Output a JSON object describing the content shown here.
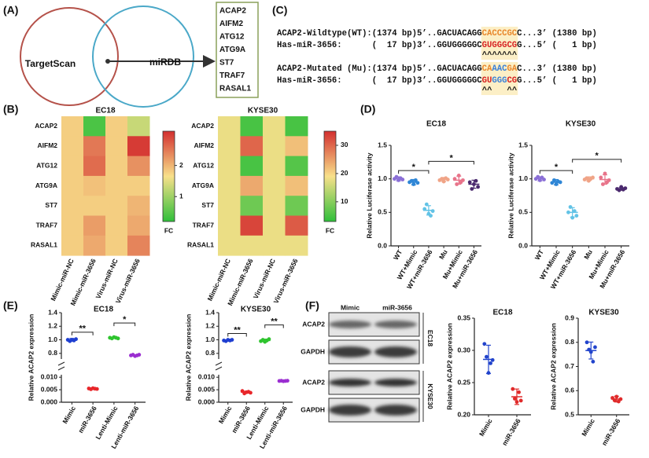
{
  "panels": [
    "(A)",
    "(C)",
    "(B)",
    "(D)",
    "(E)",
    "(F)"
  ],
  "venn": {
    "sets": [
      "TargetScan",
      "miRDB"
    ],
    "genes": [
      "ACAP2",
      "AIFM2",
      "ATG12",
      "ATG9A",
      "ST7",
      "TRAF7",
      "RASAL1"
    ]
  },
  "alignment": {
    "highlight": "#fcefc6",
    "blocks": [
      {
        "rows": [
          {
            "segments": [
              {
                "text": "ACAP2-Wildtype(WT):(1374 bp)5’..GACUACAGG",
                "color": "#111111"
              },
              {
                "text": "CACCCGC",
                "color": "#e8862a"
              },
              {
                "text": "C...3’ (1380 bp)",
                "color": "#111111"
              }
            ]
          },
          {
            "segments": [
              {
                "text": "Has-miR-3656:      (  17 bp)3’..GGUGGGGGC",
                "color": "#111111"
              },
              {
                "text": "GUGGGCG",
                "color": "#d62020"
              },
              {
                "text": "G...5’ (   1 bp)",
                "color": "#111111"
              }
            ]
          }
        ],
        "marks": "^^^^^^^"
      },
      {
        "rows": [
          {
            "segments": [
              {
                "text": "ACAP2-Mutated (Mu):(1374 bp)5’..GACUACAGG",
                "color": "#111111"
              },
              {
                "text": "CA",
                "color": "#e8862a"
              },
              {
                "text": "AAC",
                "color": "#3a7fd6"
              },
              {
                "text": "GA",
                "color": "#e8862a"
              },
              {
                "text": "C...3’ (1380 bp)",
                "color": "#111111"
              }
            ]
          },
          {
            "segments": [
              {
                "text": "Has-miR-3656:      (  17 bp)3’..GGUGGGGGC",
                "color": "#111111"
              },
              {
                "text": "GU",
                "color": "#d62020"
              },
              {
                "text": "GGG",
                "color": "#3a7fd6"
              },
              {
                "text": "CG",
                "color": "#d62020"
              },
              {
                "text": "G...5’ (   1 bp)",
                "color": "#111111"
              }
            ]
          }
        ],
        "marks": "^^   ^^"
      }
    ]
  },
  "blot": {
    "columns": [
      "Mimic",
      "miR-3656"
    ],
    "groups": [
      {
        "name": "EC18",
        "rows": [
          "ACAP2",
          "GAPDH"
        ]
      },
      {
        "name": "KYSE30",
        "rows": [
          "ACAP2",
          "GAPDH"
        ]
      }
    ]
  },
  "chart_data": [
    {
      "type": "heatmap",
      "title": "EC18",
      "rows": [
        "ACAP2",
        "AIFM2",
        "ATG12",
        "ATG9A",
        "ST7",
        "TRAF7",
        "RASAL1"
      ],
      "columns": [
        "Mimic-miR-NC",
        "Mimic-miR-3656",
        "Virus-miR-NC",
        "Virus-miR-3656"
      ],
      "values": [
        [
          1.8,
          0.4,
          1.8,
          1.3
        ],
        [
          1.8,
          2.5,
          1.8,
          3.0
        ],
        [
          1.8,
          2.6,
          1.8,
          2.3
        ],
        [
          1.8,
          1.9,
          1.8,
          1.8
        ],
        [
          1.8,
          1.8,
          1.8,
          2.0
        ],
        [
          1.8,
          2.2,
          1.8,
          2.1
        ],
        [
          1.8,
          2.1,
          1.8,
          2.4
        ]
      ],
      "zlim": [
        0.2,
        3.1
      ],
      "zticks": [
        1,
        2
      ],
      "colorbar_label": "FC",
      "colormap": [
        "#2fbf3a",
        "#f8e08a",
        "#d32f2f"
      ]
    },
    {
      "type": "heatmap",
      "title": "KYSE30",
      "rows": [
        "ACAP2",
        "AIFM2",
        "ATG12",
        "ATG9A",
        "ST7",
        "TRAF7",
        "RASAL1"
      ],
      "columns": [
        "Mimic-miR-NC",
        "Mimic-miR-3656",
        "Virus-miR-NC",
        "Virus-miR-3656"
      ],
      "values": [
        [
          18,
          5,
          18,
          5
        ],
        [
          18,
          30,
          18,
          22
        ],
        [
          18,
          5,
          18,
          6
        ],
        [
          18,
          24,
          18,
          22
        ],
        [
          18,
          8,
          18,
          8
        ],
        [
          18,
          33,
          18,
          31
        ],
        [
          18,
          18,
          18,
          18
        ]
      ],
      "zlim": [
        3,
        35
      ],
      "zticks": [
        10,
        20,
        30
      ],
      "colorbar_label": "FC",
      "colormap": [
        "#2fbf3a",
        "#f8e08a",
        "#d32f2f"
      ]
    },
    {
      "type": "dot",
      "title": "EC18",
      "y_label": "Relative Luciferase activity",
      "categories": [
        "WT",
        "WT+Mimic",
        "WT+miR-3656",
        "Mu",
        "Mu+Mimic",
        "Mu+miR-3656"
      ],
      "colors": [
        "#8a6fd6",
        "#2f86d6",
        "#62c3e6",
        "#f0a487",
        "#e8748a",
        "#4b2a6e"
      ],
      "values": [
        1.0,
        0.95,
        0.53,
        0.99,
        0.98,
        0.92
      ],
      "errors": [
        0.03,
        0.04,
        0.07,
        0.03,
        0.06,
        0.06
      ],
      "points": [
        [
          1.0,
          1.03,
          0.98,
          1.01,
          0.99
        ],
        [
          0.95,
          0.97,
          0.92,
          0.98,
          0.94
        ],
        [
          0.55,
          0.62,
          0.48,
          0.45,
          0.52
        ],
        [
          0.98,
          1.0,
          0.96,
          1.01,
          0.99
        ],
        [
          1.0,
          0.92,
          1.05,
          0.95,
          0.98
        ],
        [
          0.95,
          0.85,
          0.92,
          0.97,
          0.88
        ]
      ],
      "ylim": [
        0,
        1.5
      ],
      "yticks": [
        {
          "value": 0,
          "label": "0.0"
        },
        0.5,
        {
          "value": 1,
          "label": "1.0"
        },
        1.5
      ],
      "annotations": [
        {
          "text": "*",
          "between": [
            "WT",
            "WT+miR-3656"
          ]
        },
        {
          "text": "*",
          "between": [
            "WT+miR-3656",
            "Mu+miR-3656"
          ]
        }
      ]
    },
    {
      "type": "dot",
      "title": "KYSE30",
      "y_label": "Relative Luciferase activity",
      "categories": [
        "WT",
        "WT+Mimic",
        "WT+miR-3656",
        "Mu",
        "Mu+Mimic",
        "Mu+miR-3656"
      ],
      "colors": [
        "#8a6fd6",
        "#2f86d6",
        "#62c3e6",
        "#f0a487",
        "#e8748a",
        "#4b2a6e"
      ],
      "values": [
        1.0,
        0.95,
        0.5,
        1.0,
        0.99,
        0.85
      ],
      "errors": [
        0.03,
        0.04,
        0.07,
        0.03,
        0.07,
        0.02
      ],
      "points": [
        [
          1.0,
          1.03,
          0.98,
          1.02,
          0.99
        ],
        [
          0.94,
          0.98,
          0.92,
          0.96,
          0.95
        ],
        [
          0.5,
          0.58,
          0.42,
          0.52,
          0.45
        ],
        [
          0.99,
          1.01,
          0.97,
          1.0,
          1.02
        ],
        [
          1.02,
          0.92,
          1.08,
          0.95,
          0.98
        ],
        [
          0.85,
          0.83,
          0.88,
          0.84,
          0.86
        ]
      ],
      "ylim": [
        0,
        1.5
      ],
      "yticks": [
        {
          "value": 0,
          "label": "0.0"
        },
        0.5,
        {
          "value": 1,
          "label": "1.0"
        },
        1.5
      ],
      "annotations": [
        {
          "text": "*",
          "between": [
            "WT",
            "WT+miR-3656"
          ]
        },
        {
          "text": "*",
          "between": [
            "WT+miR-3656",
            "Mu+miR-3656"
          ]
        }
      ]
    },
    {
      "type": "dot",
      "title": "EC18",
      "y_label": "Relative ACAP2 expression",
      "categories": [
        "Mimic",
        "miR-3656",
        "Lenti-Mimic",
        "Lenti-miR-3656"
      ],
      "colors": [
        "#1f3fd1",
        "#e8262a",
        "#2fc42f",
        "#9b2fd1"
      ],
      "values": [
        1.0,
        0.0054,
        1.03,
        0.77
      ],
      "errors": [
        0.02,
        0.0002,
        0.01,
        0.01
      ],
      "points": [
        [
          1.0,
          0.98,
          1.0,
          0.99,
          1.01
        ],
        [
          0.0055,
          0.0052,
          0.0056,
          0.0054,
          0.0053
        ],
        [
          1.03,
          1.02,
          1.04,
          1.03,
          1.02
        ],
        [
          0.77,
          0.78,
          0.76,
          0.77,
          0.78
        ]
      ],
      "ylim_segments": [
        [
          0,
          0.011
        ],
        [
          0.74,
          1.4
        ]
      ],
      "yticks": [
        {
          "value": 0,
          "label": "0.000"
        },
        {
          "value": 0.005,
          "label": "0.005"
        },
        {
          "value": 0.01,
          "label": "0.010"
        },
        0.8,
        {
          "value": 1,
          "label": "1.0"
        },
        1.2,
        1.4
      ],
      "annotations": [
        {
          "text": "**",
          "between": [
            "Mimic",
            "miR-3656"
          ]
        },
        {
          "text": "*",
          "between": [
            "Lenti-Mimic",
            "Lenti-miR-3656"
          ]
        }
      ]
    },
    {
      "type": "dot",
      "title": "KYSE30",
      "y_label": "Relative ACAP2 expression",
      "categories": [
        "Mimic",
        "miR-3656",
        "Lenti-Mimic",
        "Lenti-miR-3656"
      ],
      "colors": [
        "#1f3fd1",
        "#e8262a",
        "#2fc42f",
        "#9b2fd1"
      ],
      "values": [
        0.99,
        0.004,
        0.99,
        0.0085
      ],
      "errors": [
        0.01,
        0.0004,
        0.02,
        0.0001
      ],
      "points": [
        [
          0.99,
          0.98,
          1.0,
          0.99,
          1.0
        ],
        [
          0.0045,
          0.0035,
          0.004,
          0.0042,
          0.0038
        ],
        [
          0.98,
          1.0,
          0.97,
          0.99,
          1.01
        ],
        [
          0.0085,
          0.0086,
          0.0084,
          0.0085,
          0.0086
        ]
      ],
      "ylim_segments": [
        [
          0,
          0.011
        ],
        [
          0.74,
          1.4
        ]
      ],
      "yticks": [
        {
          "value": 0,
          "label": "0.000"
        },
        {
          "value": 0.005,
          "label": "0.005"
        },
        {
          "value": 0.01,
          "label": "0.010"
        },
        0.8,
        {
          "value": 1,
          "label": "1.0"
        },
        1.2,
        1.4
      ],
      "annotations": [
        {
          "text": "**",
          "between": [
            "Mimic",
            "miR-3656"
          ]
        },
        {
          "text": "**",
          "between": [
            "Lenti-Mimic",
            "Lenti-miR-3656"
          ]
        }
      ]
    },
    {
      "type": "dot",
      "title": "EC18",
      "y_label": "Relative ACAP2 expression",
      "categories": [
        "Mimic",
        "miR-3656"
      ],
      "colors": [
        "#2244cc",
        "#e02a2a"
      ],
      "values": [
        0.286,
        0.228
      ],
      "errors": [
        0.022,
        0.012
      ],
      "points": [
        [
          0.31,
          0.29,
          0.265,
          0.28,
          0.285
        ],
        [
          0.24,
          0.225,
          0.22,
          0.235,
          0.222
        ]
      ],
      "ylim": [
        0.2,
        0.35
      ],
      "yticks": [
        {
          "value": 0.2,
          "label": "0.20"
        },
        0.25,
        {
          "value": 0.3,
          "label": "0.30"
        },
        0.35
      ]
    },
    {
      "type": "dot",
      "title": "KYSE30",
      "y_label": "Relative ACAP2 expression",
      "categories": [
        "Mimic",
        "miR-3656"
      ],
      "colors": [
        "#2244cc",
        "#e02a2a"
      ],
      "values": [
        0.766,
        0.565
      ],
      "errors": [
        0.035,
        0.012
      ],
      "points": [
        [
          0.8,
          0.77,
          0.76,
          0.72,
          0.78
        ],
        [
          0.57,
          0.56,
          0.575,
          0.555,
          0.565
        ]
      ],
      "ylim": [
        0.5,
        0.9
      ],
      "yticks": [
        0.5,
        0.6,
        0.7,
        0.8,
        0.9
      ]
    }
  ]
}
